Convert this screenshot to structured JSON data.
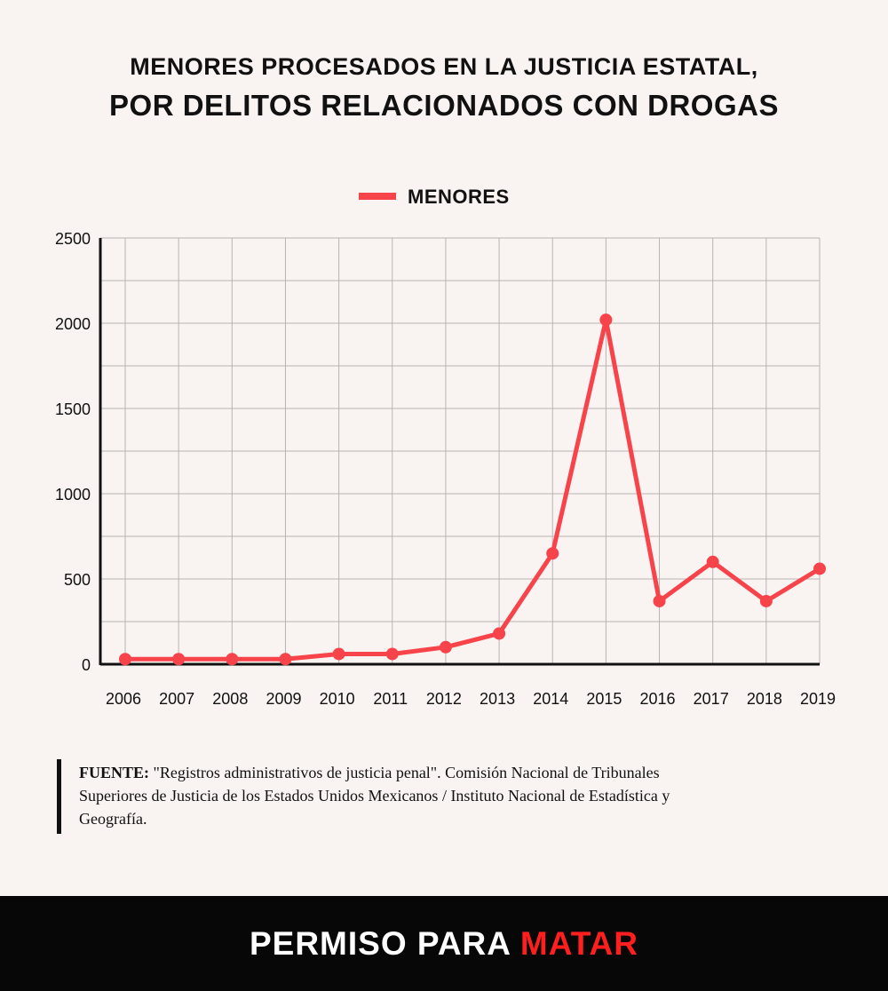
{
  "header": {
    "title_line1": "MENORES PROCESADOS EN LA JUSTICIA ESTATAL,",
    "title_line2": "POR DELITOS RELACIONADOS CON DROGAS"
  },
  "chart_data": {
    "type": "line",
    "title": "MENORES PROCESADOS EN LA JUSTICIA ESTATAL, POR DELITOS RELACIONADOS CON DROGAS",
    "xlabel": "",
    "ylabel": "",
    "categories": [
      "2006",
      "2007",
      "2008",
      "2009",
      "2010",
      "2011",
      "2012",
      "2013",
      "2014",
      "2015",
      "2016",
      "2017",
      "2018",
      "2019"
    ],
    "series": [
      {
        "name": "MENORES",
        "color": "#f7434a",
        "values": [
          30,
          30,
          30,
          30,
          60,
          60,
          100,
          180,
          650,
          2020,
          370,
          600,
          370,
          560
        ]
      }
    ],
    "ylim": [
      0,
      2500
    ],
    "yticks": [
      0,
      500,
      1000,
      1500,
      2000,
      2500
    ],
    "grid": true,
    "legend_position": "top-center"
  },
  "source": {
    "label": "FUENTE:",
    "text": " \"Registros administrativos de justicia penal\". Comisión Nacional de Tribunales Superiores de Justicia de los Estados Unidos Mexicanos / Instituto Nacional de Estadística y Geografía."
  },
  "footer": {
    "brand_part1": "PERMISO PARA ",
    "brand_part2": "MATAR"
  },
  "colors": {
    "background": "#f9f3f1",
    "line": "#f7434a",
    "footer_bg": "#070707",
    "brand_accent": "#ff1f1f"
  }
}
